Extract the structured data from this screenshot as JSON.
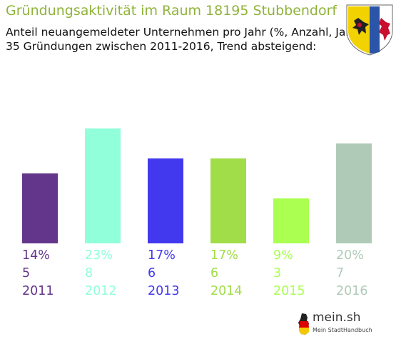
{
  "title": "Gründungsaktivität im Raum 18195 Stubbendorf",
  "subtitle_lines": [
    "Anteil neuangemeldeter Unternehmen pro Jahr (%, Anzahl, Jahr)",
    "35 Gründungen zwischen 2011-2016, Trend absteigend:"
  ],
  "colors": {
    "title": "#8fb33a",
    "bars": [
      "#63368b",
      "#91ffd9",
      "#4239ef",
      "#a0dd48",
      "#aaff51",
      "#afcbb8"
    ]
  },
  "logo": {
    "main": "mein.sh",
    "sub": "Mein StadtHandbuch",
    "icon": "germany-map-icon"
  },
  "crest": {
    "icon": "coat-of-arms-icon"
  },
  "chart_data": {
    "type": "bar",
    "categories": [
      "2011",
      "2012",
      "2013",
      "2014",
      "2015",
      "2016"
    ],
    "values": [
      14,
      23,
      17,
      17,
      9,
      20
    ],
    "percent_labels": [
      "14%",
      "23%",
      "17%",
      "17%",
      "9%",
      "20%"
    ],
    "count_labels": [
      "5",
      "8",
      "6",
      "6",
      "3",
      "7"
    ],
    "unit": "%",
    "grid": false,
    "legend": "none"
  }
}
